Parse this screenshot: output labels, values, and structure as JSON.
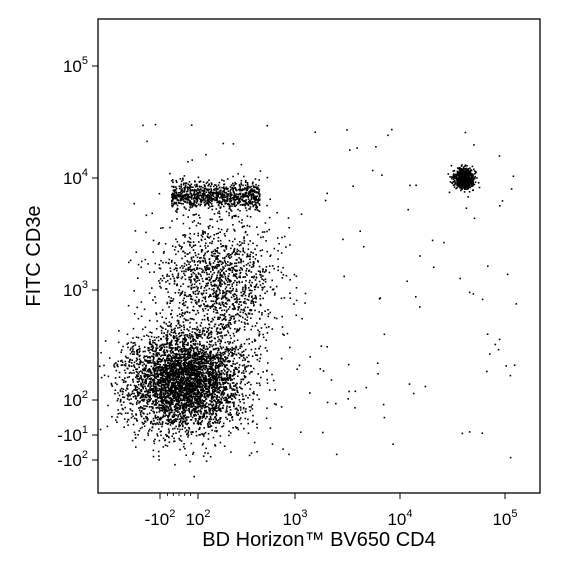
{
  "chart_data": {
    "type": "scatter",
    "title": "",
    "xlabel": "BD Horizon™ BV650 CD4",
    "ylabel": "FITC CD3e",
    "x_scale": "biexponential",
    "y_scale": "biexponential",
    "xlim": [
      -700,
      250000
    ],
    "ylim": [
      -500,
      250000
    ],
    "grid": false,
    "legend": "none",
    "point_color": "#000000",
    "x_ticks": [
      {
        "value": -100,
        "base": "-10",
        "exp": "2"
      },
      {
        "value": 100,
        "base": "10",
        "exp": "2"
      },
      {
        "value": 1000,
        "base": "10",
        "exp": "3"
      },
      {
        "value": 10000,
        "base": "10",
        "exp": "4"
      },
      {
        "value": 100000,
        "base": "10",
        "exp": "5"
      }
    ],
    "y_ticks": [
      {
        "value": -100,
        "base": "-10",
        "exp": "2"
      },
      {
        "value": -10,
        "base": "-10",
        "exp": "1"
      },
      {
        "value": 100,
        "base": "10",
        "exp": "2"
      },
      {
        "value": 1000,
        "base": "10",
        "exp": "3"
      },
      {
        "value": 10000,
        "base": "10",
        "exp": "4"
      },
      {
        "value": 100000,
        "base": "10",
        "exp": "5"
      }
    ],
    "populations": [
      {
        "name": "",
        "center": [
          30,
          150
        ],
        "spread_decades": [
          0.55,
          0.45
        ],
        "count": 4200
      },
      {
        "name": "",
        "center": [
          150,
          7000
        ],
        "spread_decades": [
          0.6,
          0.12
        ],
        "count": 900
      },
      {
        "name": "",
        "center": [
          40000,
          10000
        ],
        "spread_decades": [
          0.09,
          0.09
        ],
        "count": 750
      },
      {
        "name": "",
        "center": [
          150,
          1200
        ],
        "spread_decades": [
          0.55,
          0.55
        ],
        "count": 1300
      }
    ]
  }
}
